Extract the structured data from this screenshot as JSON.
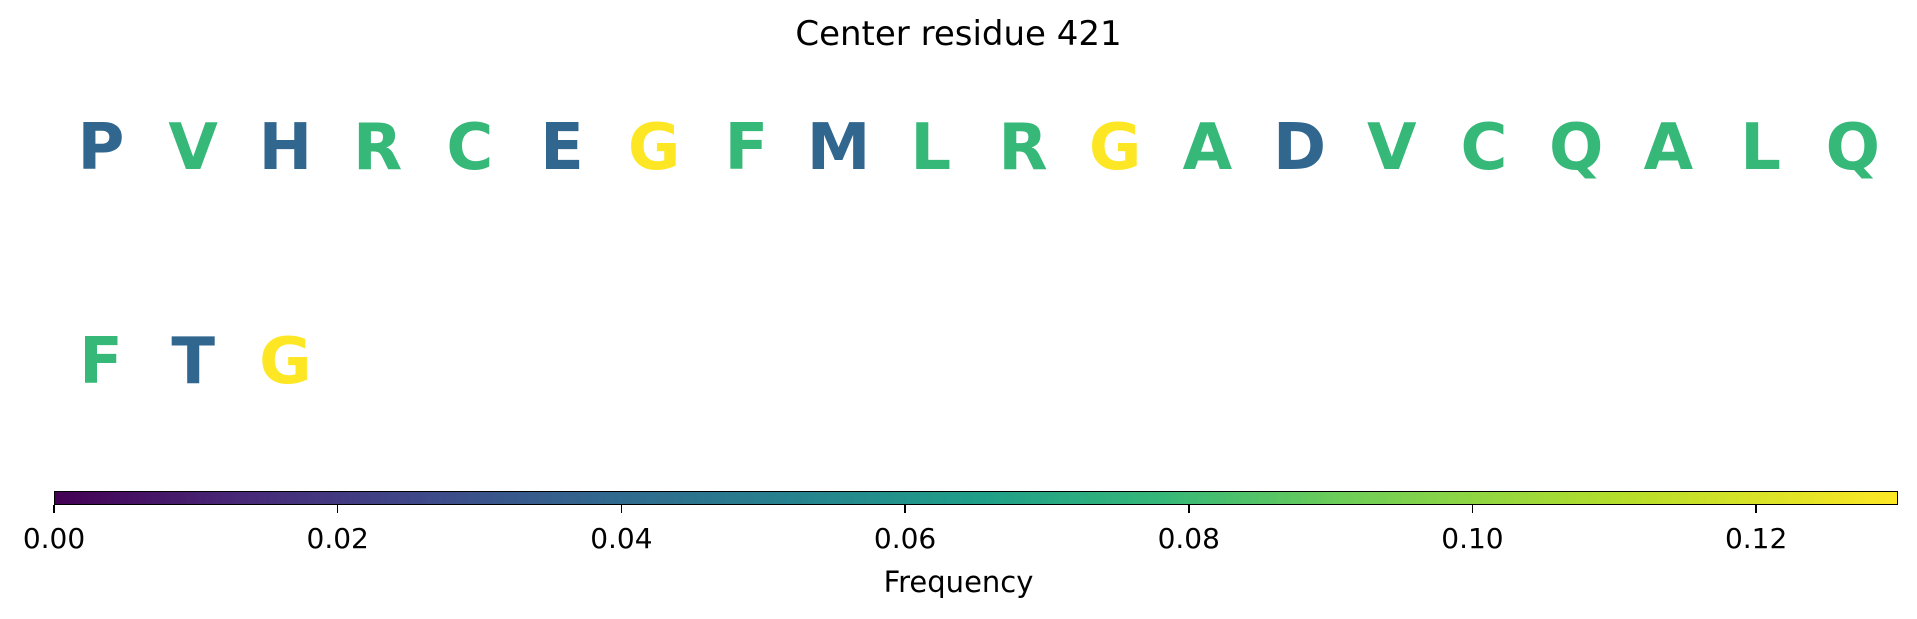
{
  "chart_data": {
    "type": "sequence-logo",
    "title": "Center residue 421",
    "residues": [
      {
        "letter": "P",
        "value": 0.043
      },
      {
        "letter": "V",
        "value": 0.087
      },
      {
        "letter": "H",
        "value": 0.043
      },
      {
        "letter": "R",
        "value": 0.087
      },
      {
        "letter": "C",
        "value": 0.087
      },
      {
        "letter": "E",
        "value": 0.043
      },
      {
        "letter": "G",
        "value": 0.13
      },
      {
        "letter": "F",
        "value": 0.087
      },
      {
        "letter": "M",
        "value": 0.043
      },
      {
        "letter": "L",
        "value": 0.087
      },
      {
        "letter": "R",
        "value": 0.087
      },
      {
        "letter": "G",
        "value": 0.13
      },
      {
        "letter": "A",
        "value": 0.087
      },
      {
        "letter": "D",
        "value": 0.043
      },
      {
        "letter": "V",
        "value": 0.087
      },
      {
        "letter": "C",
        "value": 0.087
      },
      {
        "letter": "Q",
        "value": 0.087
      },
      {
        "letter": "A",
        "value": 0.087
      },
      {
        "letter": "L",
        "value": 0.087
      },
      {
        "letter": "Q",
        "value": 0.087
      },
      {
        "letter": "F",
        "value": 0.087
      },
      {
        "letter": "T",
        "value": 0.043
      },
      {
        "letter": "G",
        "value": 0.13
      }
    ],
    "colorbar": {
      "label": "Frequency",
      "range": [
        0,
        0.13
      ],
      "ticks": [
        "0.00",
        "0.02",
        "0.04",
        "0.06",
        "0.08",
        "0.10",
        "0.12"
      ],
      "colormap": "viridis"
    }
  }
}
